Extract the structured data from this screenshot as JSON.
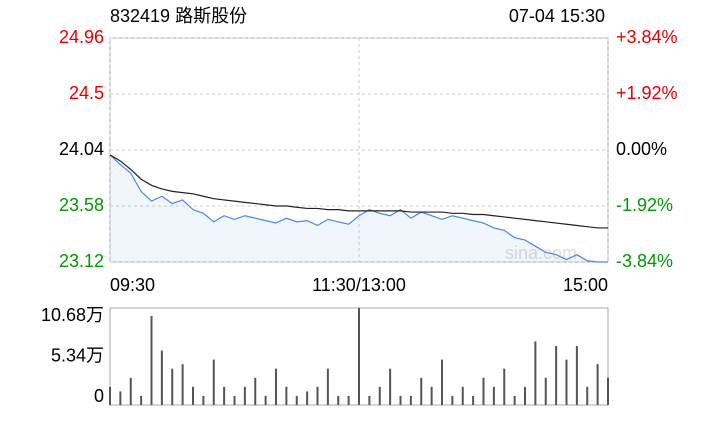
{
  "header": {
    "title": "832419 路斯股份",
    "time": "07-04 15:30"
  },
  "chart_data": [
    {
      "type": "line",
      "watermark": "sina.com",
      "x": [
        0,
        5,
        10,
        15,
        20,
        25,
        30,
        35,
        40,
        45,
        50,
        55,
        60,
        65,
        70,
        75,
        80,
        85,
        90,
        95,
        100,
        105,
        110,
        115,
        120,
        125,
        130,
        135,
        140,
        145,
        150,
        155,
        160,
        165,
        170,
        175,
        180,
        185,
        190,
        195,
        200,
        205,
        210,
        215,
        220,
        225,
        230,
        235,
        240
      ],
      "xlim": [
        0,
        240
      ],
      "xticks": [
        {
          "value": 0,
          "label": "09:30"
        },
        {
          "value": 120,
          "label": "11:30/13:00"
        },
        {
          "value": 240,
          "label": "15:00"
        }
      ],
      "ylim": [
        23.12,
        24.96
      ],
      "yticks": [
        24.96,
        24.5,
        {
          "value": 24.04,
          "label": "24.04"
        },
        23.58,
        23.12
      ],
      "ytick_colors": [
        "#e60000",
        "#e60000",
        "#000000",
        "#009900",
        "#009900"
      ],
      "y2lim": [
        -3.84,
        3.84
      ],
      "y2ticks": [
        {
          "value": 3.84,
          "label": "+3.84%"
        },
        {
          "value": 1.92,
          "label": "+1.92%"
        },
        {
          "value": 0,
          "label": "0.00%"
        },
        {
          "value": -1.92,
          "label": "-1.92%"
        },
        {
          "value": -3.84,
          "label": "-3.84%"
        }
      ],
      "grid": true,
      "series": [
        {
          "color": "#4a86e8",
          "values": [
            24.0,
            23.92,
            23.85,
            23.7,
            23.62,
            23.66,
            23.6,
            23.63,
            23.55,
            23.52,
            23.45,
            23.5,
            23.47,
            23.5,
            23.48,
            23.46,
            23.44,
            23.48,
            23.45,
            23.46,
            23.42,
            23.47,
            23.45,
            23.43,
            23.5,
            23.55,
            23.52,
            23.5,
            23.55,
            23.48,
            23.53,
            23.5,
            23.47,
            23.5,
            23.48,
            23.46,
            23.44,
            23.4,
            23.38,
            23.32,
            23.3,
            23.25,
            23.2,
            23.18,
            23.14,
            23.18,
            23.13,
            23.12,
            23.12
          ]
        },
        {
          "color": "#222222",
          "values": [
            24.0,
            23.95,
            23.88,
            23.8,
            23.75,
            23.72,
            23.7,
            23.69,
            23.68,
            23.66,
            23.64,
            23.63,
            23.62,
            23.61,
            23.6,
            23.59,
            23.58,
            23.58,
            23.57,
            23.56,
            23.56,
            23.55,
            23.55,
            23.54,
            23.54,
            23.54,
            23.54,
            23.54,
            23.54,
            23.53,
            23.53,
            23.53,
            23.53,
            23.52,
            23.52,
            23.51,
            23.51,
            23.5,
            23.49,
            23.48,
            23.47,
            23.46,
            23.45,
            23.44,
            23.43,
            23.42,
            23.41,
            23.4,
            23.4
          ]
        }
      ]
    },
    {
      "type": "bar",
      "color": "#555555",
      "x": [
        0,
        5,
        10,
        15,
        20,
        25,
        30,
        35,
        40,
        45,
        50,
        55,
        60,
        65,
        70,
        75,
        80,
        85,
        90,
        95,
        100,
        105,
        110,
        115,
        120,
        125,
        130,
        135,
        140,
        145,
        150,
        155,
        160,
        165,
        170,
        175,
        180,
        185,
        190,
        195,
        200,
        205,
        210,
        215,
        220,
        225,
        230,
        235,
        240
      ],
      "xlim": [
        0,
        240
      ],
      "ylim": [
        0,
        10.68
      ],
      "yticks": [
        {
          "value": 10.68,
          "label": "10.68万"
        },
        {
          "value": 5.34,
          "label": "5.34万"
        },
        0
      ],
      "values": [
        2,
        1.5,
        3,
        1,
        9.8,
        6,
        4,
        4.5,
        2,
        1,
        5,
        2,
        1,
        2,
        3,
        1,
        4,
        2,
        1,
        1.5,
        2,
        4,
        1,
        1,
        10.68,
        1,
        2,
        4,
        1,
        1,
        3,
        2,
        5,
        1,
        2,
        1,
        3,
        2,
        4,
        1,
        2,
        7,
        3,
        6.5,
        5,
        6.5,
        2,
        4.5,
        3
      ]
    }
  ]
}
